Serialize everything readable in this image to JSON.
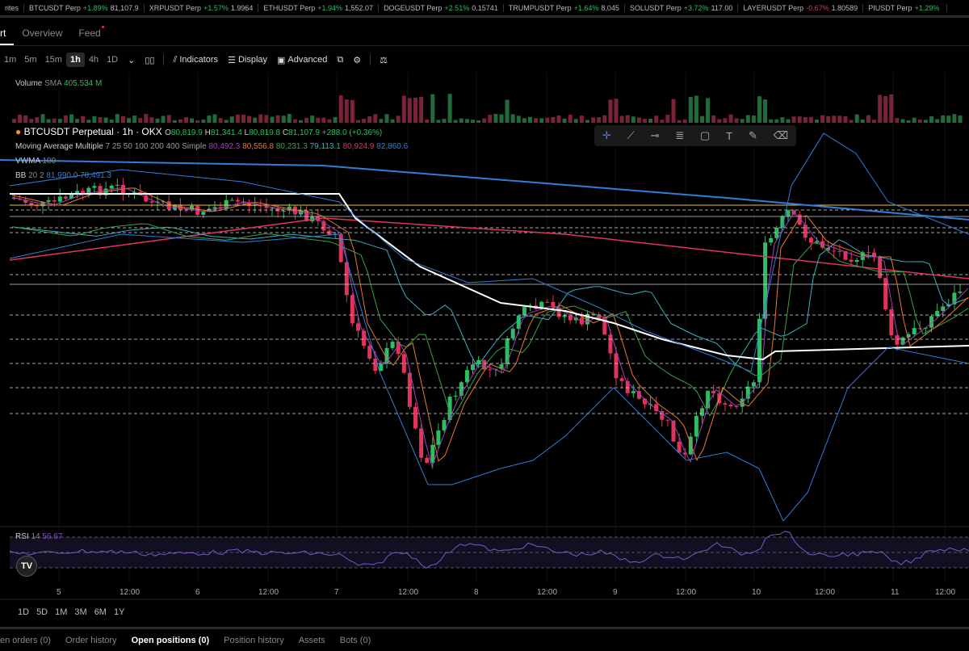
{
  "ticker": [
    {
      "prefix": "rites"
    },
    {
      "symbol": "BTCUSDT Perp",
      "change": "+1.89%",
      "price": "81,107.9",
      "dir": "up"
    },
    {
      "symbol": "XRPUSDT Perp",
      "change": "+1.57%",
      "price": "1.9964",
      "dir": "up"
    },
    {
      "symbol": "ETHUSDT Perp",
      "change": "+1.94%",
      "price": "1,552.07",
      "dir": "up"
    },
    {
      "symbol": "DOGEUSDT Perp",
      "change": "+2.51%",
      "price": "0.15741",
      "dir": "up"
    },
    {
      "symbol": "TRUMPUSDT Perp",
      "change": "+1.64%",
      "price": "8.045",
      "dir": "up"
    },
    {
      "symbol": "SOLUSDT Perp",
      "change": "+3.72%",
      "price": "117.00",
      "dir": "up"
    },
    {
      "symbol": "LAYERUSDT Perp",
      "change": "-0.67%",
      "price": "1.80589",
      "dir": "dn"
    },
    {
      "symbol": "PIUSDT Perp",
      "change": "+1.29%",
      "price": "",
      "dir": "up"
    }
  ],
  "tabs": {
    "chart": "rt",
    "overview": "Overview",
    "feed": "Feed"
  },
  "toolbar": {
    "timeframes": [
      "1m",
      "5m",
      "15m",
      "1h",
      "4h",
      "1D"
    ],
    "selected": "1h",
    "indicators": "Indicators",
    "display": "Display",
    "advanced": "Advanced"
  },
  "legend": {
    "volume_label": "Volume",
    "volume_sma": "SMA",
    "volume_value": "405.534 M",
    "symbol": "BTCUSDT Perpetual · 1h · OKX",
    "o": "80,819.9",
    "h": "81,341.4",
    "l": "80,819.8",
    "c": "81,107.9",
    "chg": "+288.0 (+0.36%)",
    "ma_label": "Moving Average Multiple",
    "ma_params": "7 25 50 100 200 400 Simple",
    "ma_values": [
      {
        "v": "80,492.3",
        "color": "#a23fb8"
      },
      {
        "v": "80,556.8",
        "color": "#e8772e"
      },
      {
        "v": "80,231.3",
        "color": "#3aa14a"
      },
      {
        "v": "79,113.1",
        "color": "#38b0c0"
      },
      {
        "v": "80,924.9",
        "color": "#e0345a"
      },
      {
        "v": "82,860.6",
        "color": "#2f7ed8"
      }
    ],
    "vwma_label": "VWMA",
    "vwma_param": "100",
    "bb_label": "BB",
    "bb_params": "20 2",
    "bb_upper": "81,990.0",
    "bb_lower": "78,491.3",
    "rsi_label": "RSI",
    "rsi_param": "14",
    "rsi_value": "56.67"
  },
  "colors": {
    "up": "#2ebd63",
    "down": "#e0345a",
    "background": "#000000"
  },
  "xaxis": [
    "5",
    "12:00",
    "6",
    "12:00",
    "7",
    "12:00",
    "8",
    "12:00",
    "9",
    "12:00",
    "10",
    "12:00",
    "11",
    "12:00"
  ],
  "ranges": [
    "1D",
    "5D",
    "1M",
    "3M",
    "6M",
    "1Y"
  ],
  "bottom_tabs": [
    "en orders (0)",
    "Order history",
    "Open positions (0)",
    "Position history",
    "Assets",
    "Bots (0)"
  ],
  "bottom_tab_active": "Open positions (0)",
  "drawing_tools": [
    "crosshair-icon",
    "trendline-icon",
    "horizontal-ray-icon",
    "fib-icon",
    "rectangle-icon",
    "text-icon",
    "brush-icon",
    "eraser-icon"
  ]
}
